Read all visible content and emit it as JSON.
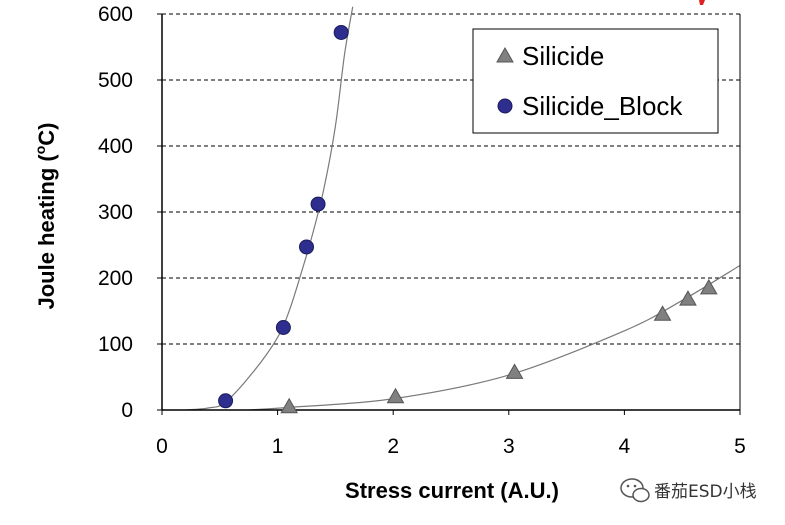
{
  "chart_data": {
    "type": "scatter",
    "title": "",
    "xlabel": "Stress current (A.U.)",
    "ylabel_main": "Joule heating (",
    "ylabel_sup": "o",
    "ylabel_end": "C)",
    "xlim": [
      0,
      5
    ],
    "ylim": [
      0,
      600
    ],
    "xticks": [
      "0",
      "1",
      "2",
      "3",
      "4",
      "5"
    ],
    "yticks": [
      "0",
      "100",
      "200",
      "300",
      "400",
      "500",
      "600"
    ],
    "grid": "horizontal-dashed",
    "legend_position": "top-right",
    "series": [
      {
        "name": "Silicide",
        "marker": "triangle",
        "color": "#808080",
        "points": [
          [
            1.1,
            5
          ],
          [
            2.02,
            20
          ],
          [
            3.05,
            57
          ],
          [
            4.33,
            145
          ],
          [
            4.55,
            168
          ],
          [
            4.73,
            185
          ]
        ],
        "trend": [
          [
            0.75,
            0
          ],
          [
            1.1,
            4
          ],
          [
            2.0,
            17
          ],
          [
            3.0,
            53
          ],
          [
            4.0,
            120
          ],
          [
            4.5,
            166
          ],
          [
            5.0,
            219
          ]
        ]
      },
      {
        "name": "Silicide_Block",
        "marker": "circle",
        "color": "#2e2e8f",
        "points": [
          [
            0.55,
            14
          ],
          [
            1.05,
            125
          ],
          [
            1.25,
            247
          ],
          [
            1.35,
            312
          ],
          [
            1.55,
            572
          ]
        ],
        "trend": [
          [
            0.2,
            0
          ],
          [
            0.4,
            3
          ],
          [
            0.55,
            12
          ],
          [
            0.8,
            60
          ],
          [
            1.0,
            110
          ],
          [
            1.1,
            150
          ],
          [
            1.2,
            205
          ],
          [
            1.3,
            265
          ],
          [
            1.4,
            335
          ],
          [
            1.5,
            430
          ],
          [
            1.58,
            540
          ],
          [
            1.65,
            611
          ]
        ]
      }
    ]
  },
  "watermark": {
    "text": "番茄ESD小栈",
    "icon": "wechat-icon"
  }
}
